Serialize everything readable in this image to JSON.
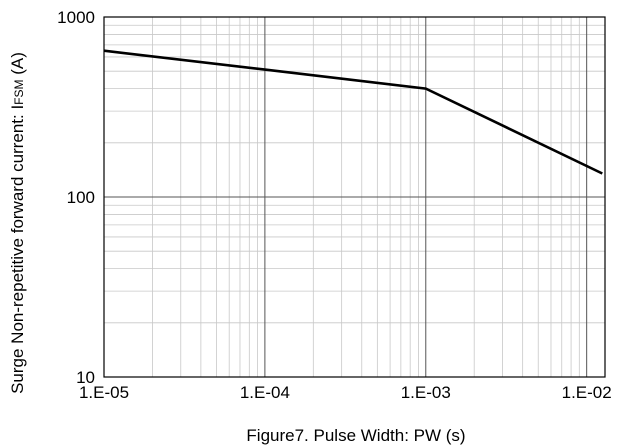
{
  "chart_data": {
    "type": "line",
    "xscale": "log",
    "yscale": "log",
    "xlim": [
      1e-05,
      0.013
    ],
    "ylim": [
      10,
      1000
    ],
    "xlabel": "Figure7. Pulse Width: PW (s)",
    "ylabel": {
      "prefix": "Surge Non-repetitive forward current: I",
      "subscript": "FSM",
      "suffix": " (A)"
    },
    "x_tick_labels": [
      {
        "value": 1e-05,
        "label": "1.E-05"
      },
      {
        "value": 0.0001,
        "label": "1.E-04"
      },
      {
        "value": 0.001,
        "label": "1.E-03"
      },
      {
        "value": 0.01,
        "label": "1.E-02"
      }
    ],
    "y_tick_labels": [
      {
        "value": 10,
        "label": "10"
      },
      {
        "value": 100,
        "label": "100"
      },
      {
        "value": 1000,
        "label": "1000"
      }
    ],
    "grid": true,
    "series": [
      {
        "x": [
          1e-05,
          0.0001,
          0.001,
          0.0125
        ],
        "y": [
          650,
          510,
          400,
          135
        ]
      }
    ]
  }
}
